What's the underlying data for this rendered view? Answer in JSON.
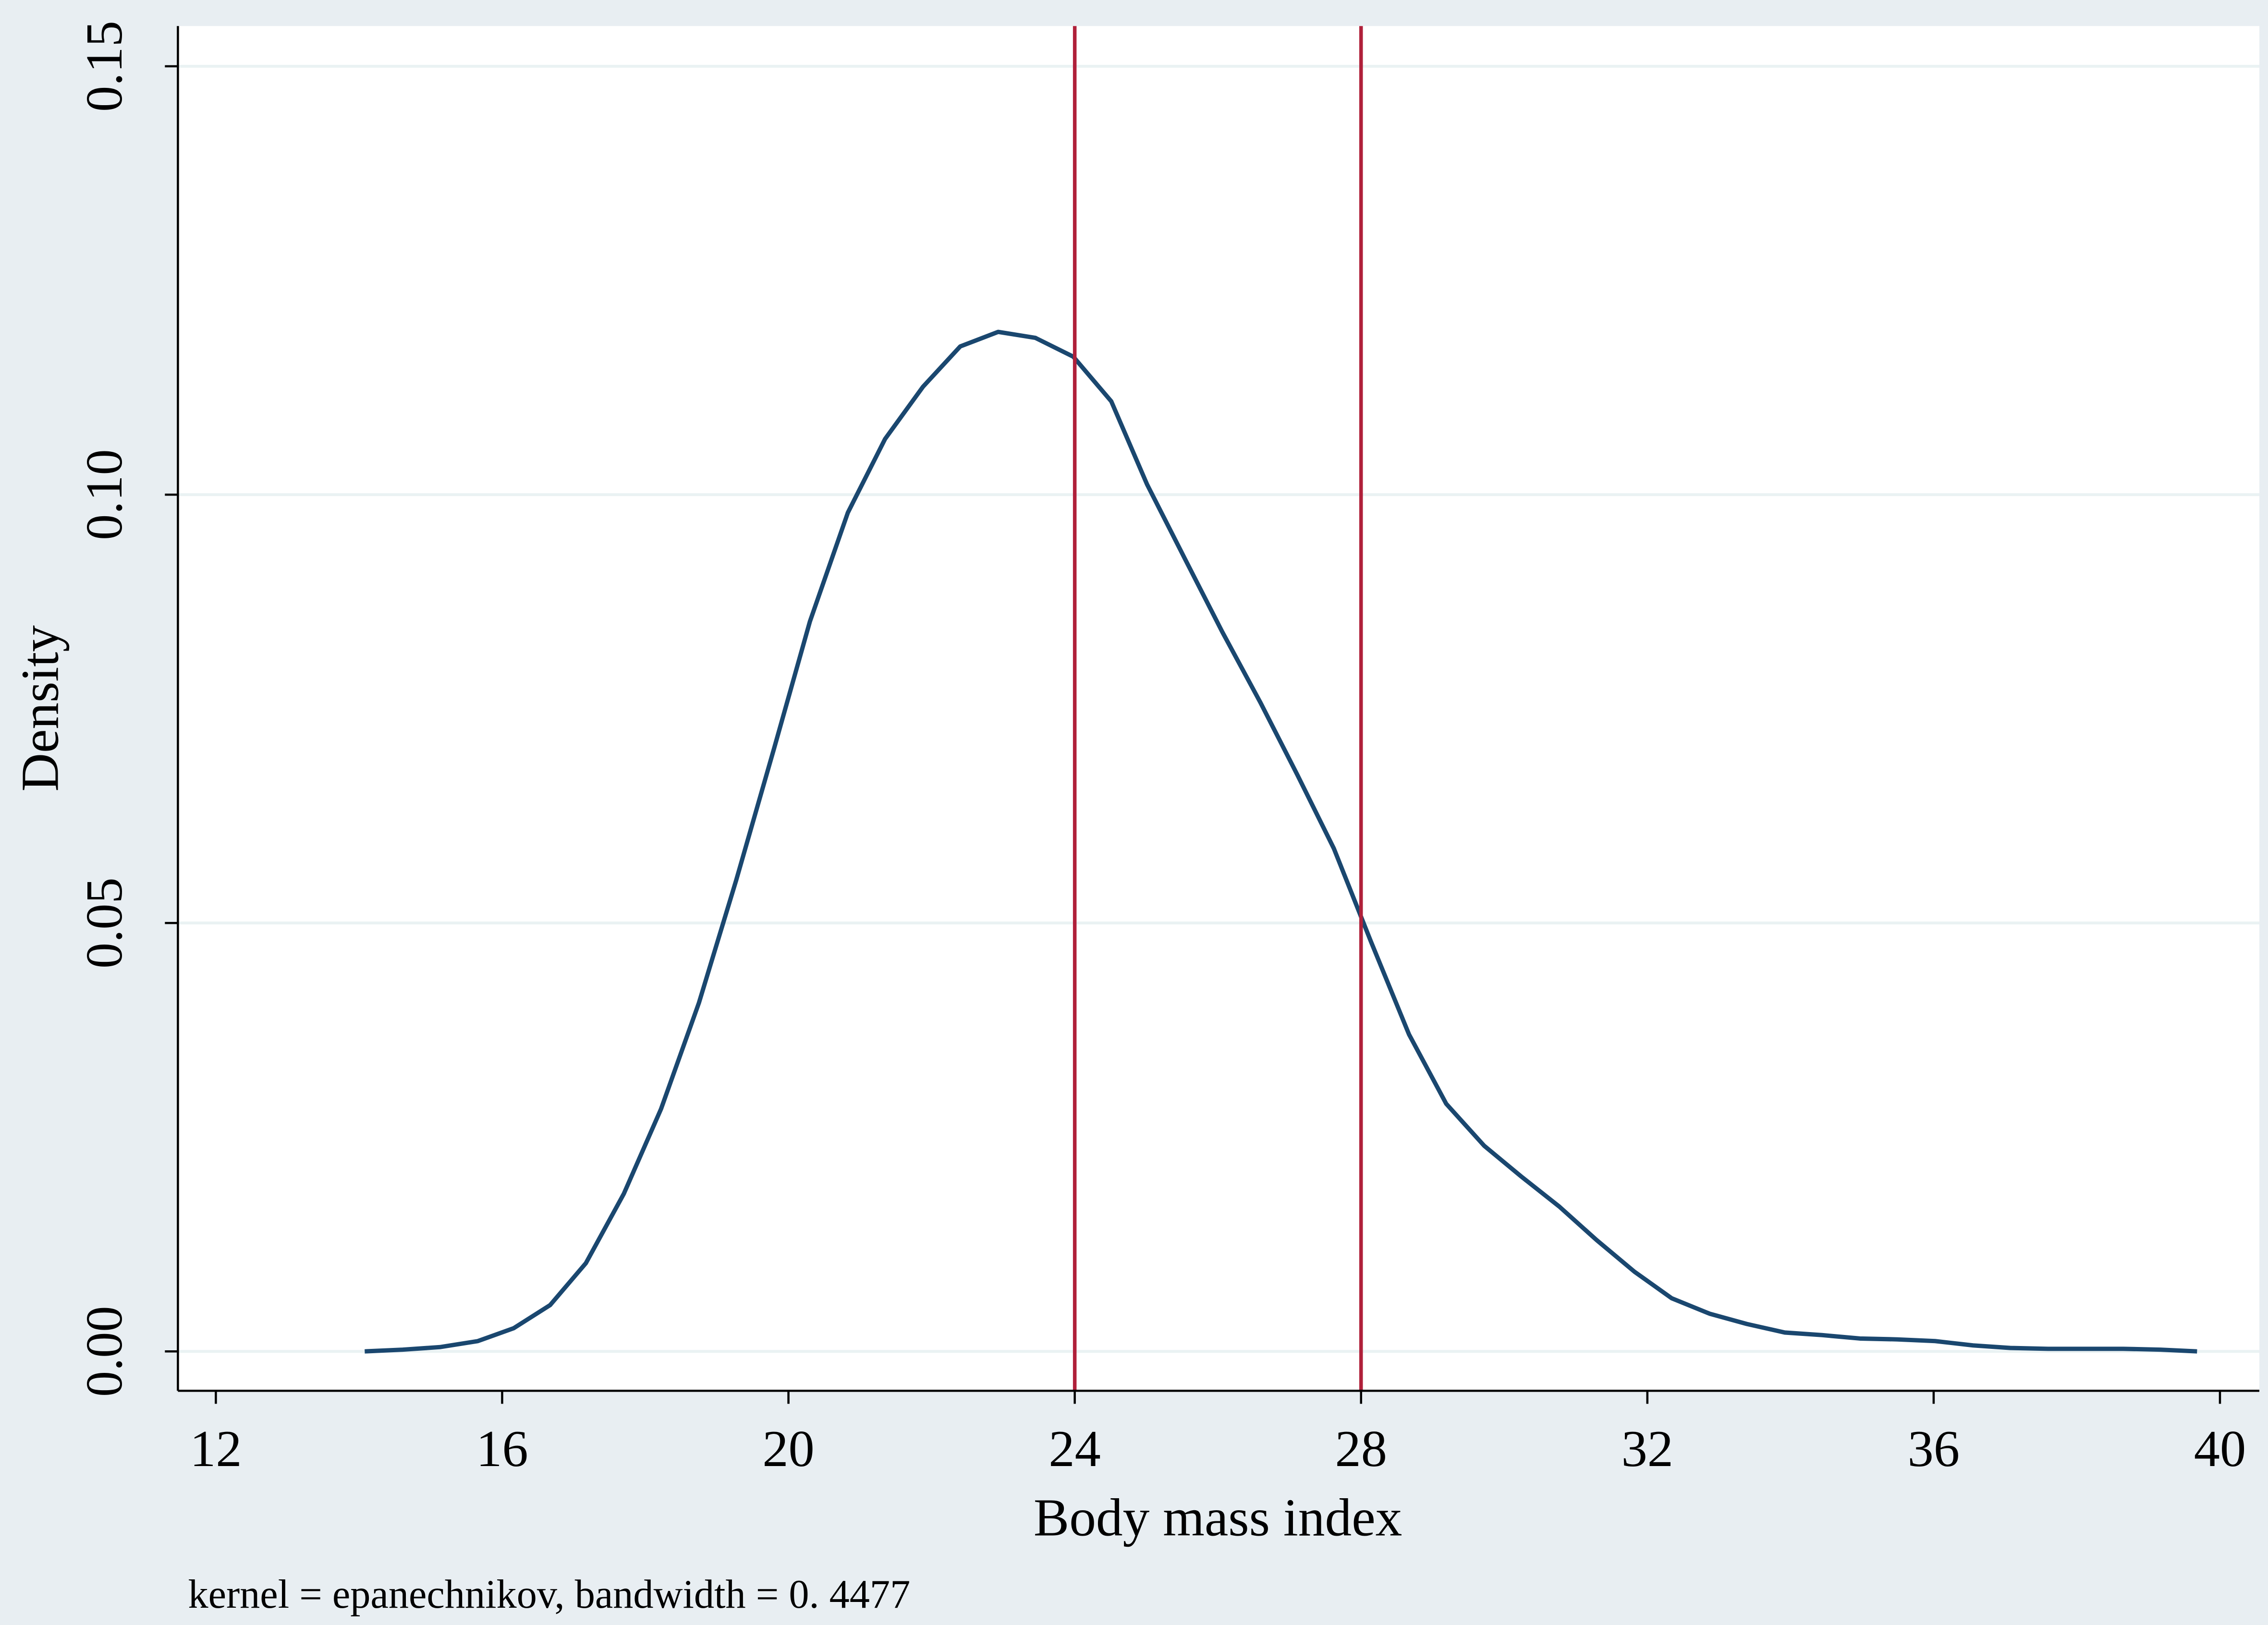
{
  "chart_data": {
    "type": "line",
    "x_label": "Body mass index",
    "y_label": "Density",
    "note": "kernel = epanechnikov, bandwidth = 0. 4477",
    "x": [
      14.08,
      14.61,
      15.13,
      15.66,
      16.16,
      16.67,
      17.17,
      17.7,
      18.22,
      18.75,
      19.27,
      19.8,
      20.3,
      20.83,
      21.35,
      21.88,
      22.4,
      22.93,
      23.45,
      23.98,
      24.51,
      25.01,
      25.54,
      26.06,
      26.59,
      27.11,
      27.62,
      28.14,
      28.67,
      29.19,
      29.72,
      30.24,
      30.77,
      31.29,
      31.82,
      32.34,
      32.87,
      33.39,
      33.92,
      34.44,
      34.97,
      35.49,
      36.02,
      36.55,
      37.07,
      37.6,
      38.12,
      38.65,
      39.17,
      39.68
    ],
    "y": [
      0.0,
      0.0002,
      0.0005,
      0.0012,
      0.0027,
      0.0054,
      0.0103,
      0.0184,
      0.0283,
      0.0407,
      0.055,
      0.0704,
      0.0852,
      0.0979,
      0.1065,
      0.1126,
      0.1173,
      0.119,
      0.1183,
      0.1161,
      0.1109,
      0.1012,
      0.0925,
      0.084,
      0.0758,
      0.0673,
      0.0587,
      0.0478,
      0.037,
      0.0289,
      0.024,
      0.0204,
      0.0169,
      0.013,
      0.0093,
      0.0062,
      0.0044,
      0.0032,
      0.0022,
      0.0019,
      0.0015,
      0.0014,
      0.0012,
      0.0007,
      0.0004,
      0.0003,
      0.0003,
      0.0003,
      0.0002,
      0.0
    ],
    "color": "#1a476f",
    "vlines": [
      24,
      28
    ],
    "vline_color": "#b0203a",
    "xlim": [
      11.47,
      40.55
    ],
    "ylim": [
      -0.0046,
      0.1547
    ],
    "xticks": [
      12,
      16,
      20,
      24,
      28,
      32,
      36,
      40
    ],
    "yticks": [
      {
        "value": 0,
        "label": "0.00"
      },
      {
        "value": 0.05,
        "label": "0.05"
      },
      {
        "value": 0.1,
        "label": "0.10"
      },
      {
        "value": 0.15,
        "label": "0.15"
      }
    ],
    "grid": true
  }
}
